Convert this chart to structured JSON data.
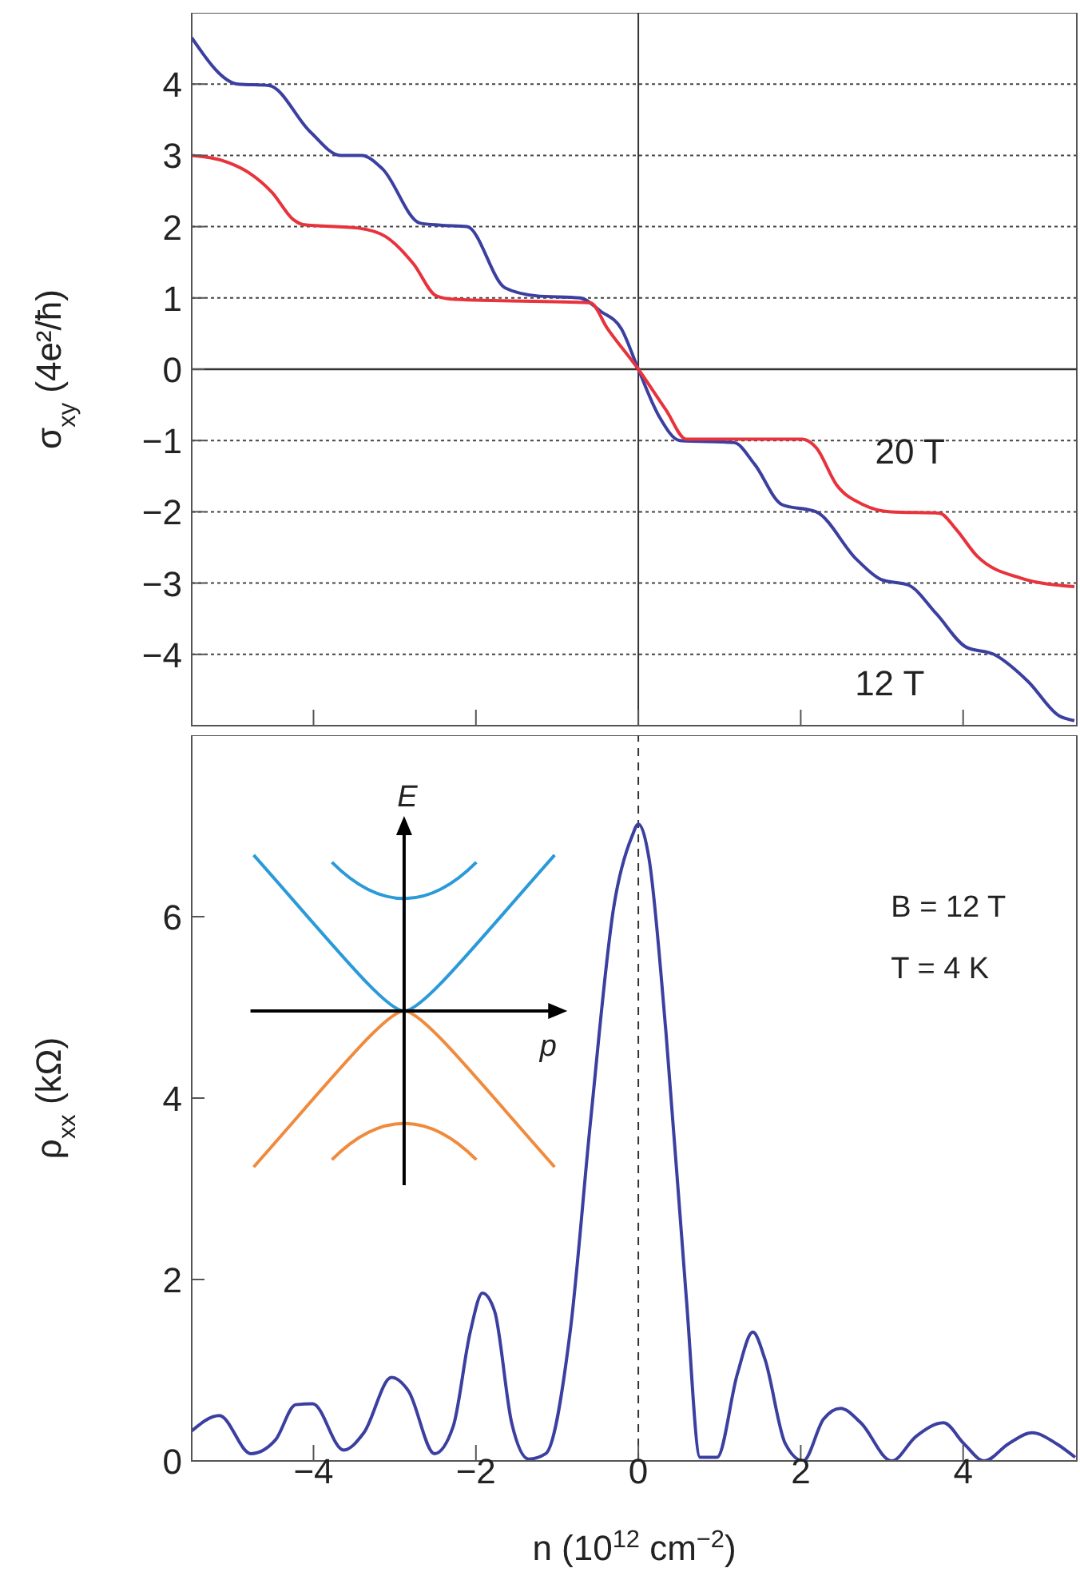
{
  "chart_data": [
    {
      "type": "line",
      "ylabel": "σ$_{xy}$ (4e²/ħ)",
      "xlim": [
        -5.5,
        5.4
      ],
      "xticks": [
        {
          "value": -4,
          "label": null
        },
        {
          "value": -2,
          "label": null
        },
        {
          "value": 0,
          "label": null
        },
        {
          "value": 2,
          "label": null
        },
        {
          "value": 4,
          "label": null
        }
      ],
      "ylim": [
        -5,
        5
      ],
      "yticks": [
        -4,
        -3,
        -2,
        -1,
        0,
        1,
        2,
        3,
        4
      ],
      "tick_labels": "y",
      "grid": "y",
      "legend": false,
      "marker": "none",
      "line_style": "solid",
      "ref_lines": [
        {
          "axis": "x",
          "value": 0,
          "color": "#333333",
          "line_style": "solid"
        },
        {
          "axis": "y",
          "value": 0,
          "color": "#333333",
          "line_style": "solid"
        }
      ],
      "series": [
        {
          "name": "12 T",
          "color": "#3b3fa0",
          "x": [
            -5.5,
            -4.93,
            -4.55,
            -4.04,
            -3.67,
            -3.41,
            -3.15,
            -2.69,
            -2.44,
            -2.11,
            -1.64,
            -1.26,
            -0.72,
            -0.46,
            -0.21,
            0,
            0.26,
            0.51,
            1.18,
            1.43,
            1.77,
            2.19,
            2.69,
            2.99,
            3.33,
            3.67,
            4.04,
            4.38,
            4.8,
            5.18,
            5.37
          ],
          "values": [
            4.65,
            4.0,
            3.98,
            3.33,
            3.0,
            3.0,
            2.81,
            2.05,
            2.02,
            2.0,
            1.14,
            1.03,
            1.0,
            0.81,
            0.57,
            0,
            -0.67,
            -1.0,
            -1.03,
            -1.33,
            -1.9,
            -2.0,
            -2.67,
            -2.95,
            -3.03,
            -3.43,
            -3.9,
            -4.0,
            -4.38,
            -4.86,
            -4.93
          ]
        },
        {
          "name": "20 T",
          "color": "#e8323c",
          "x": [
            -5.5,
            -5.05,
            -4.8,
            -4.51,
            -4.25,
            -4.13,
            -3.45,
            -3.11,
            -2.77,
            -2.49,
            -2.27,
            -0.59,
            -0.38,
            0,
            0.34,
            0.59,
            2.02,
            2.19,
            2.44,
            2.77,
            3.11,
            3.71,
            3.91,
            4.17,
            4.71,
            5.37
          ],
          "values": [
            3.0,
            2.9,
            2.76,
            2.48,
            2.1,
            2.03,
            1.98,
            1.86,
            1.48,
            1.03,
            0.98,
            0.93,
            0.57,
            0,
            -0.57,
            -0.98,
            -0.98,
            -1.1,
            -1.62,
            -1.9,
            -2.0,
            -2.02,
            -2.24,
            -2.62,
            -2.93,
            -3.05
          ]
        }
      ]
    },
    {
      "type": "line",
      "xlabel": "n (10$^{12}$ cm$^{−2}$)",
      "ylabel": "ρ$_{xx}$ (kΩ)",
      "xlim": [
        -5.5,
        5.4
      ],
      "xticks": [
        {
          "value": -4,
          "label": "−4"
        },
        {
          "value": -2,
          "label": "−2"
        },
        0,
        2,
        4
      ],
      "ylim": [
        0,
        8
      ],
      "yticks": [
        0,
        2,
        4,
        6
      ],
      "grid": false,
      "legend": false,
      "marker": "none",
      "line_style": "solid",
      "ref_lines": [
        {
          "axis": "x",
          "value": 0,
          "color": "#333333",
          "line_style": "dashed"
        }
      ],
      "annotations": [
        "B = 12 T",
        "T = 4 K",
        "E",
        "p"
      ],
      "series": [
        {
          "color": "#3b3fa0",
          "x": [
            -5.5,
            -5.16,
            -4.77,
            -4.47,
            -4.22,
            -4.01,
            -3.63,
            -3.38,
            -3.04,
            -2.83,
            -2.51,
            -2.28,
            -2.07,
            -1.92,
            -1.77,
            -1.56,
            -1.35,
            -1.14,
            -0.84,
            -0.59,
            -0.3,
            -0.08,
            0,
            0.13,
            0.34,
            0.59,
            0.76,
            0.97,
            1.22,
            1.41,
            1.56,
            1.81,
            2.03,
            2.28,
            2.49,
            2.74,
            3.12,
            3.42,
            3.76,
            4.01,
            4.26,
            4.56,
            4.85,
            5.15,
            5.38
          ],
          "values": [
            0.33,
            0.5,
            0.08,
            0.23,
            0.62,
            0.63,
            0.12,
            0.31,
            0.92,
            0.77,
            0.08,
            0.38,
            1.42,
            1.85,
            1.65,
            0.42,
            0.02,
            0.08,
            1.42,
            3.73,
            6.12,
            6.88,
            7.02,
            6.65,
            4.73,
            1.81,
            0.04,
            0.04,
            0.96,
            1.42,
            1.12,
            0.19,
            0,
            0.46,
            0.58,
            0.42,
            0,
            0.27,
            0.42,
            0.19,
            0,
            0.19,
            0.31,
            0.19,
            0.04
          ]
        }
      ]
    }
  ]
}
